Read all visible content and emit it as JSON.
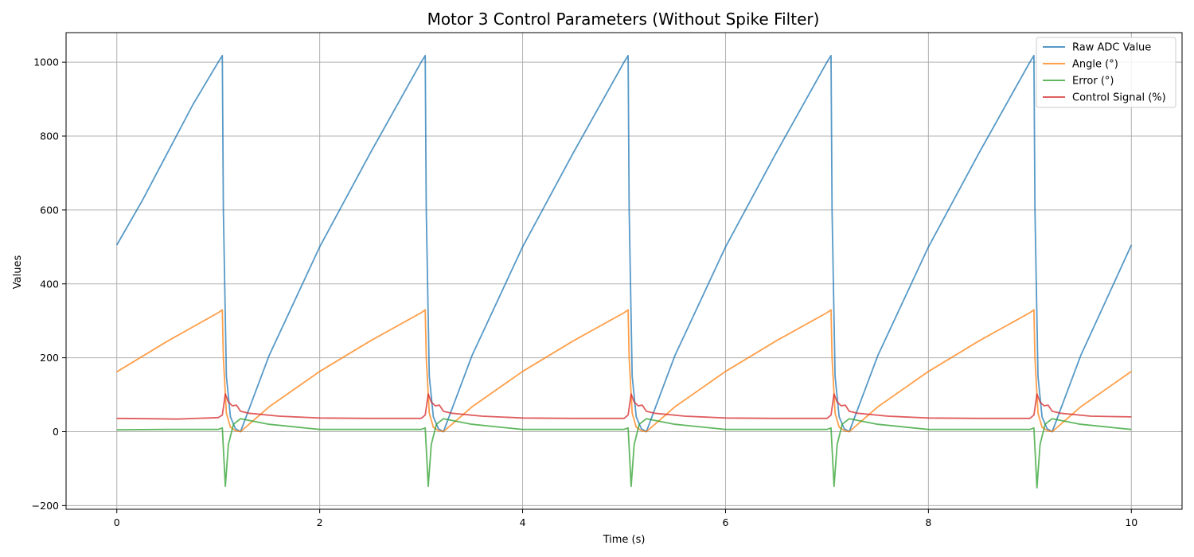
{
  "chart_data": {
    "type": "line",
    "title": "Motor 3 Control Parameters (Without Spike Filter)",
    "xlabel": "Time (s)",
    "ylabel": "Values",
    "xlim": [
      -0.5,
      10.5
    ],
    "ylim": [
      -210,
      1080
    ],
    "xticks": [
      0,
      2,
      4,
      6,
      8,
      10
    ],
    "yticks": [
      -200,
      0,
      200,
      400,
      600,
      800,
      1000
    ],
    "xtick_labels": [
      "0",
      "2",
      "4",
      "6",
      "8",
      "10"
    ],
    "ytick_labels": [
      "−200",
      "0",
      "200",
      "400",
      "600",
      "800",
      "1000"
    ],
    "grid": true,
    "legend_position": "top-right",
    "series": [
      {
        "name": "Raw ADC Value",
        "color": "#1f77b4",
        "x": [
          0,
          0.25,
          0.5,
          0.75,
          1.0,
          1.04,
          1.05,
          1.08,
          1.12,
          1.17,
          1.22,
          1.5,
          2.0,
          2.5,
          3.0,
          3.04,
          3.05,
          3.08,
          3.12,
          3.17,
          3.22,
          3.5,
          4.0,
          4.5,
          5.0,
          5.04,
          5.05,
          5.08,
          5.12,
          5.17,
          5.22,
          5.5,
          6.0,
          6.5,
          7.0,
          7.04,
          7.05,
          7.08,
          7.12,
          7.17,
          7.22,
          7.5,
          8.0,
          8.5,
          9.0,
          9.04,
          9.05,
          9.08,
          9.12,
          9.17,
          9.22,
          9.5,
          10.0
        ],
        "y": [
          505,
          625,
          755,
          885,
          1000,
          1018,
          600,
          150,
          40,
          8,
          0,
          205,
          500,
          755,
          1000,
          1018,
          600,
          150,
          40,
          8,
          0,
          205,
          500,
          755,
          1000,
          1018,
          600,
          150,
          40,
          8,
          0,
          205,
          500,
          755,
          1000,
          1018,
          600,
          150,
          40,
          8,
          0,
          205,
          500,
          755,
          1000,
          1018,
          600,
          150,
          40,
          8,
          0,
          205,
          505
        ]
      },
      {
        "name": "Angle (°)",
        "color": "#ff7f0e",
        "x": [
          0,
          0.5,
          1.0,
          1.04,
          1.05,
          1.08,
          1.12,
          1.17,
          1.22,
          1.5,
          2.0,
          2.5,
          3.0,
          3.04,
          3.05,
          3.08,
          3.12,
          3.17,
          3.22,
          3.5,
          4.0,
          4.5,
          5.0,
          5.04,
          5.05,
          5.08,
          5.12,
          5.17,
          5.22,
          5.5,
          6.0,
          6.5,
          7.0,
          7.04,
          7.05,
          7.08,
          7.12,
          7.17,
          7.22,
          7.5,
          8.0,
          8.5,
          9.0,
          9.04,
          9.05,
          9.08,
          9.12,
          9.17,
          9.22,
          9.5,
          10.0
        ],
        "y": [
          162,
          245,
          322,
          330,
          200,
          50,
          12,
          3,
          0,
          67,
          163,
          246,
          322,
          330,
          200,
          50,
          12,
          3,
          0,
          67,
          163,
          246,
          322,
          330,
          200,
          50,
          12,
          3,
          0,
          67,
          163,
          246,
          322,
          330,
          200,
          50,
          12,
          3,
          0,
          67,
          163,
          246,
          322,
          330,
          200,
          50,
          12,
          3,
          0,
          67,
          163
        ]
      },
      {
        "name": "Error (°)",
        "color": "#2ca02c",
        "x": [
          0,
          0.5,
          1.0,
          1.04,
          1.07,
          1.1,
          1.15,
          1.22,
          1.5,
          2.0,
          3.0,
          3.04,
          3.07,
          3.1,
          3.15,
          3.22,
          3.5,
          4.0,
          5.0,
          5.04,
          5.07,
          5.1,
          5.15,
          5.22,
          5.5,
          6.0,
          7.0,
          7.04,
          7.07,
          7.1,
          7.15,
          7.22,
          7.5,
          8.0,
          9.0,
          9.04,
          9.07,
          9.1,
          9.15,
          9.22,
          9.5,
          10.0
        ],
        "y": [
          5,
          6,
          6,
          10,
          -148,
          -35,
          20,
          35,
          20,
          6,
          6,
          10,
          -148,
          -35,
          20,
          35,
          20,
          6,
          6,
          10,
          -148,
          -35,
          20,
          35,
          20,
          6,
          6,
          10,
          -148,
          -35,
          20,
          35,
          20,
          6,
          6,
          10,
          -152,
          -35,
          20,
          35,
          20,
          6
        ]
      },
      {
        "name": "Control Signal (%)",
        "color": "#d62728",
        "x": [
          0,
          0.3,
          0.6,
          0.9,
          1.0,
          1.04,
          1.07,
          1.1,
          1.14,
          1.18,
          1.22,
          1.3,
          1.6,
          2.0,
          2.5,
          3.0,
          3.04,
          3.07,
          3.1,
          3.14,
          3.18,
          3.22,
          3.3,
          3.6,
          4.0,
          4.5,
          5.0,
          5.04,
          5.07,
          5.1,
          5.14,
          5.18,
          5.22,
          5.3,
          5.6,
          6.0,
          6.5,
          7.0,
          7.04,
          7.07,
          7.1,
          7.14,
          7.18,
          7.22,
          7.3,
          7.6,
          8.0,
          8.5,
          9.0,
          9.04,
          9.07,
          9.1,
          9.14,
          9.18,
          9.22,
          9.3,
          9.6,
          10.0
        ],
        "y": [
          36,
          35,
          34,
          37,
          38,
          45,
          102,
          80,
          70,
          72,
          55,
          50,
          42,
          37,
          36,
          36,
          45,
          102,
          80,
          70,
          72,
          55,
          50,
          42,
          37,
          36,
          36,
          45,
          102,
          80,
          70,
          72,
          55,
          50,
          42,
          37,
          36,
          36,
          45,
          102,
          80,
          70,
          72,
          55,
          50,
          42,
          37,
          36,
          36,
          45,
          102,
          80,
          70,
          72,
          55,
          50,
          42,
          40
        ]
      }
    ]
  }
}
